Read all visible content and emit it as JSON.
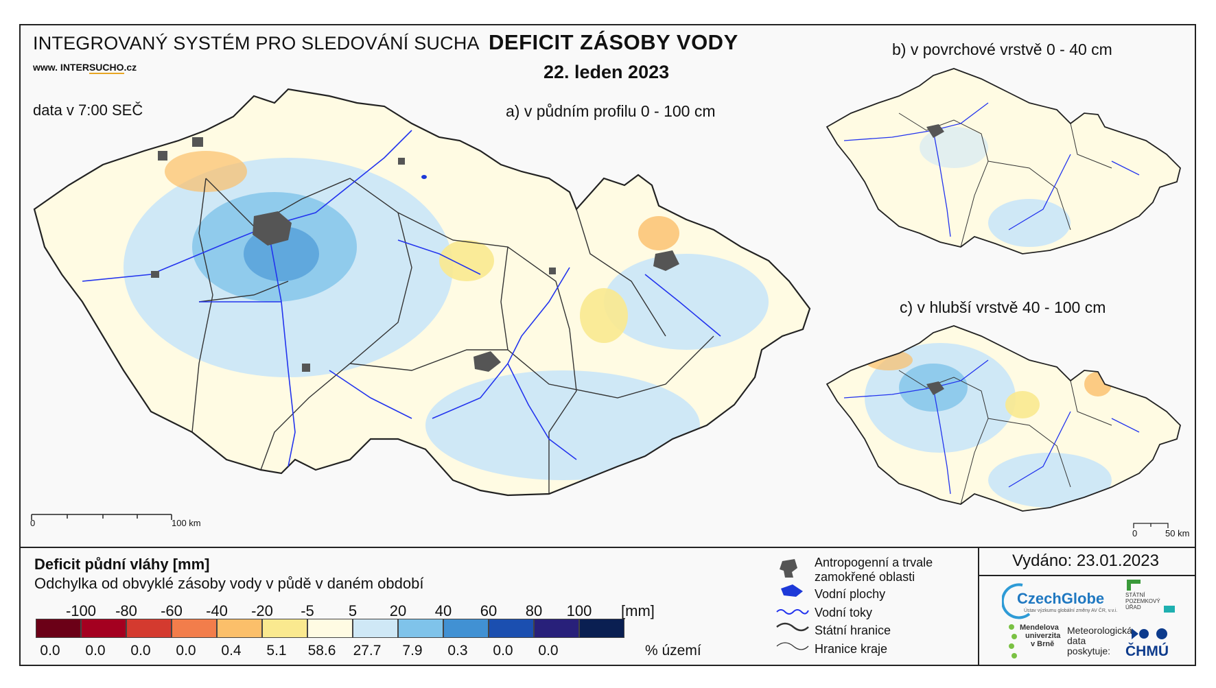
{
  "header": {
    "system_title": "INTEGROVANÝ SYSTÉM PRO SLEDOVÁNÍ SUCHA",
    "website_prefix": "www. INTER",
    "website_highlight": "SUCHO",
    "website_suffix": ".cz",
    "data_time": "data v 7:00 SEČ",
    "main_title": "DEFICIT ZÁSOBY VODY",
    "date": "22. leden 2023"
  },
  "maps": {
    "a_label": "a) v půdním profilu 0 - 100 cm",
    "b_label": "b) v povrchové vrstvě 0 - 40 cm",
    "c_label": "c) v hlubší vrstvě 40 - 100 cm",
    "scale_a": {
      "zero": "0",
      "end": "100 km"
    },
    "scale_c": {
      "zero": "0",
      "end": "50 km"
    }
  },
  "legend": {
    "title": "Deficit půdní vláhy  [mm]",
    "subtitle": "Odchylka od obvyklé zásoby vody v půdě v daném období",
    "unit": "[mm]",
    "pct_unit": "% území",
    "breaks": [
      "-100",
      "-80",
      "-60",
      "-40",
      "-20",
      "-5",
      "5",
      "20",
      "40",
      "60",
      "80",
      "100"
    ],
    "colors": [
      "#6b0017",
      "#a40020",
      "#d43a2f",
      "#f27d4b",
      "#fbbf6a",
      "#fae98f",
      "#fffbe3",
      "#cfe8f6",
      "#7fc3ea",
      "#4191d3",
      "#1b4fb0",
      "#28207a",
      "#0a1f52"
    ],
    "percentages": [
      "0.0",
      "0.0",
      "0.0",
      "0.0",
      "0.4",
      "5.1",
      "58.6",
      "27.7",
      "7.9",
      "0.3",
      "0.0",
      "0.0"
    ]
  },
  "symbols": {
    "urban": "Antropogenní a trvale zamokřené oblasti",
    "water_bodies": "Vodní plochy",
    "rivers": "Vodní toky",
    "state_border": "Státní hranice",
    "region_border": "Hranice kraje"
  },
  "footer": {
    "issued": "Vydáno: 23.01.2023",
    "czechglobe": "CzechGlobe",
    "czechglobe_sub": "Ústav výzkumu globální změny AV ČR, v.v.i.",
    "spu": [
      "STÁTNÍ",
      "POZEMKOVÝ",
      "ÚŘAD"
    ],
    "mendel": [
      "Mendelova",
      "univerzita",
      "v Brně"
    ],
    "met": [
      "Meteorologická",
      "data",
      "poskytuje:"
    ],
    "chmu": "ČHMÚ"
  }
}
